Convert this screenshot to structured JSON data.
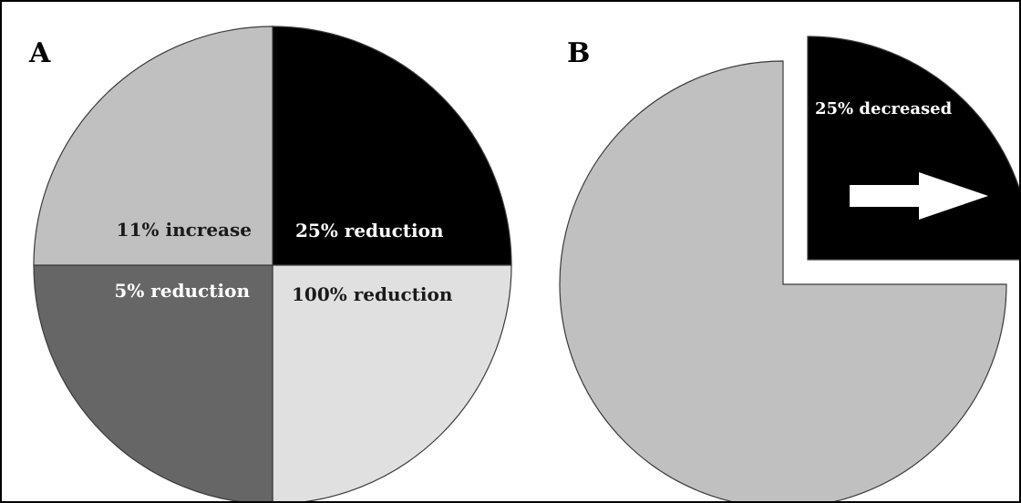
{
  "chart_data": [
    {
      "type": "pie",
      "panel": "A",
      "title": "",
      "slices": [
        {
          "label": "25% reduction",
          "value": 25,
          "color": "#000000",
          "text_color": "#ffffff"
        },
        {
          "label": "100% reduction",
          "value": 25,
          "color": "#e0e0e0",
          "text_color": "#1a1a1a"
        },
        {
          "label": "5% reduction",
          "value": 25,
          "color": "#666666",
          "text_color": "#ffffff"
        },
        {
          "label": "11% increase",
          "value": 25,
          "color": "#c0c0c0",
          "text_color": "#1a1a1a"
        }
      ]
    },
    {
      "type": "pie",
      "panel": "B",
      "title": "",
      "slices": [
        {
          "label": "25% decreased",
          "value": 25,
          "color": "#000000",
          "text_color": "#ffffff",
          "exploded": true,
          "arrow": "right",
          "arrow_color": "#ffffff"
        },
        {
          "label": "",
          "value": 75,
          "color": "#c0c0c0",
          "text_color": "#1a1a1a"
        }
      ]
    }
  ],
  "colors": {
    "outline": "#3a3a3a",
    "background": "#ffffff",
    "frame": "#000000"
  }
}
